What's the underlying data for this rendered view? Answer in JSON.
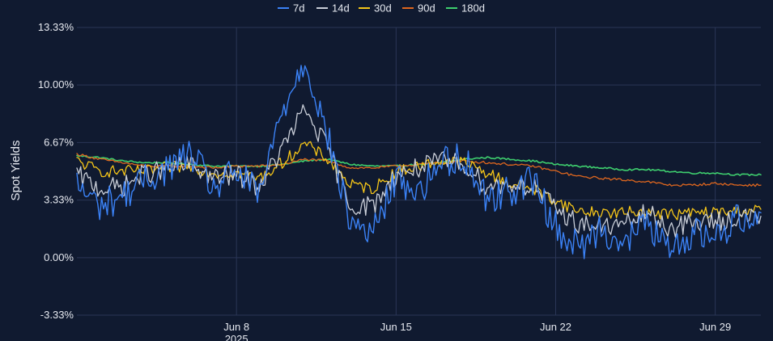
{
  "chart_data": {
    "type": "line",
    "title": "",
    "xlabel": "",
    "ylabel": "Spot Yields",
    "ylim": [
      -3.33,
      13.33
    ],
    "xlim": [
      "2025-06-01",
      "2025-07-01"
    ],
    "grid": true,
    "legend_position": "top",
    "y_ticks": [
      "13.33%",
      "10.00%",
      "6.67%",
      "3.33%",
      "0.00%",
      "-3.33%"
    ],
    "y_tick_values": [
      13.33,
      10.0,
      6.67,
      3.33,
      0.0,
      -3.33
    ],
    "x_ticks": [
      {
        "date": "2025-06-08",
        "label": "Jun 8",
        "sublabel": "2025"
      },
      {
        "date": "2025-06-15",
        "label": "Jun 15",
        "sublabel": ""
      },
      {
        "date": "2025-06-22",
        "label": "Jun 22",
        "sublabel": ""
      },
      {
        "date": "2025-06-29",
        "label": "Jun 29",
        "sublabel": ""
      }
    ],
    "x": [
      "2025-06-01",
      "2025-06-02",
      "2025-06-03",
      "2025-06-04",
      "2025-06-05",
      "2025-06-06",
      "2025-06-07",
      "2025-06-08",
      "2025-06-09",
      "2025-06-10",
      "2025-06-11",
      "2025-06-12",
      "2025-06-13",
      "2025-06-14",
      "2025-06-15",
      "2025-06-16",
      "2025-06-17",
      "2025-06-18",
      "2025-06-19",
      "2025-06-20",
      "2025-06-21",
      "2025-06-22",
      "2025-06-23",
      "2025-06-24",
      "2025-06-25",
      "2025-06-26",
      "2025-06-27",
      "2025-06-28",
      "2025-06-29",
      "2025-06-30",
      "2025-07-01"
    ],
    "series": [
      {
        "name": "7d",
        "color": "#3b82f6",
        "width": 1.4,
        "values": [
          4.2,
          3.0,
          3.6,
          4.5,
          5.2,
          6.0,
          4.0,
          5.0,
          3.6,
          8.5,
          11.5,
          7.0,
          2.0,
          1.5,
          4.6,
          3.8,
          5.6,
          5.8,
          3.4,
          3.9,
          4.5,
          1.8,
          0.5,
          1.8,
          0.7,
          2.2,
          0.2,
          1.5,
          1.2,
          2.3,
          2.6
        ]
      },
      {
        "name": "14d",
        "color": "#c9ced8",
        "width": 1.3,
        "values": [
          4.8,
          4.0,
          4.1,
          4.9,
          5.1,
          5.4,
          4.6,
          4.8,
          4.1,
          6.3,
          8.6,
          6.3,
          3.0,
          3.0,
          4.8,
          5.2,
          5.6,
          5.4,
          4.1,
          4.3,
          4.1,
          2.8,
          2.0,
          1.8,
          1.9,
          2.6,
          1.7,
          2.0,
          2.1,
          2.3,
          2.4
        ]
      },
      {
        "name": "30d",
        "color": "#f5c518",
        "width": 1.3,
        "values": [
          5.6,
          5.0,
          5.0,
          5.0,
          5.2,
          5.3,
          4.9,
          4.9,
          4.6,
          5.5,
          6.6,
          5.7,
          4.2,
          4.0,
          5.0,
          5.3,
          5.6,
          5.5,
          4.9,
          4.3,
          4.0,
          3.3,
          2.7,
          2.6,
          2.6,
          2.7,
          2.5,
          2.6,
          2.6,
          2.7,
          2.8
        ]
      },
      {
        "name": "90d",
        "color": "#e0671e",
        "width": 1.3,
        "values": [
          6.0,
          5.7,
          5.5,
          5.3,
          5.3,
          5.3,
          5.2,
          5.3,
          5.3,
          5.4,
          5.7,
          5.6,
          5.2,
          5.2,
          5.3,
          5.4,
          5.5,
          5.6,
          5.5,
          5.4,
          5.3,
          5.0,
          4.7,
          4.6,
          4.5,
          4.4,
          4.2,
          4.2,
          4.3,
          4.2,
          4.2
        ]
      },
      {
        "name": "180d",
        "color": "#3ecf6e",
        "width": 1.6,
        "values": [
          5.9,
          5.8,
          5.6,
          5.5,
          5.5,
          5.4,
          5.3,
          5.3,
          5.3,
          5.4,
          5.6,
          5.7,
          5.4,
          5.3,
          5.3,
          5.4,
          5.5,
          5.7,
          5.8,
          5.7,
          5.6,
          5.4,
          5.3,
          5.2,
          5.1,
          5.1,
          5.0,
          4.9,
          4.9,
          4.8,
          4.8
        ]
      }
    ]
  }
}
